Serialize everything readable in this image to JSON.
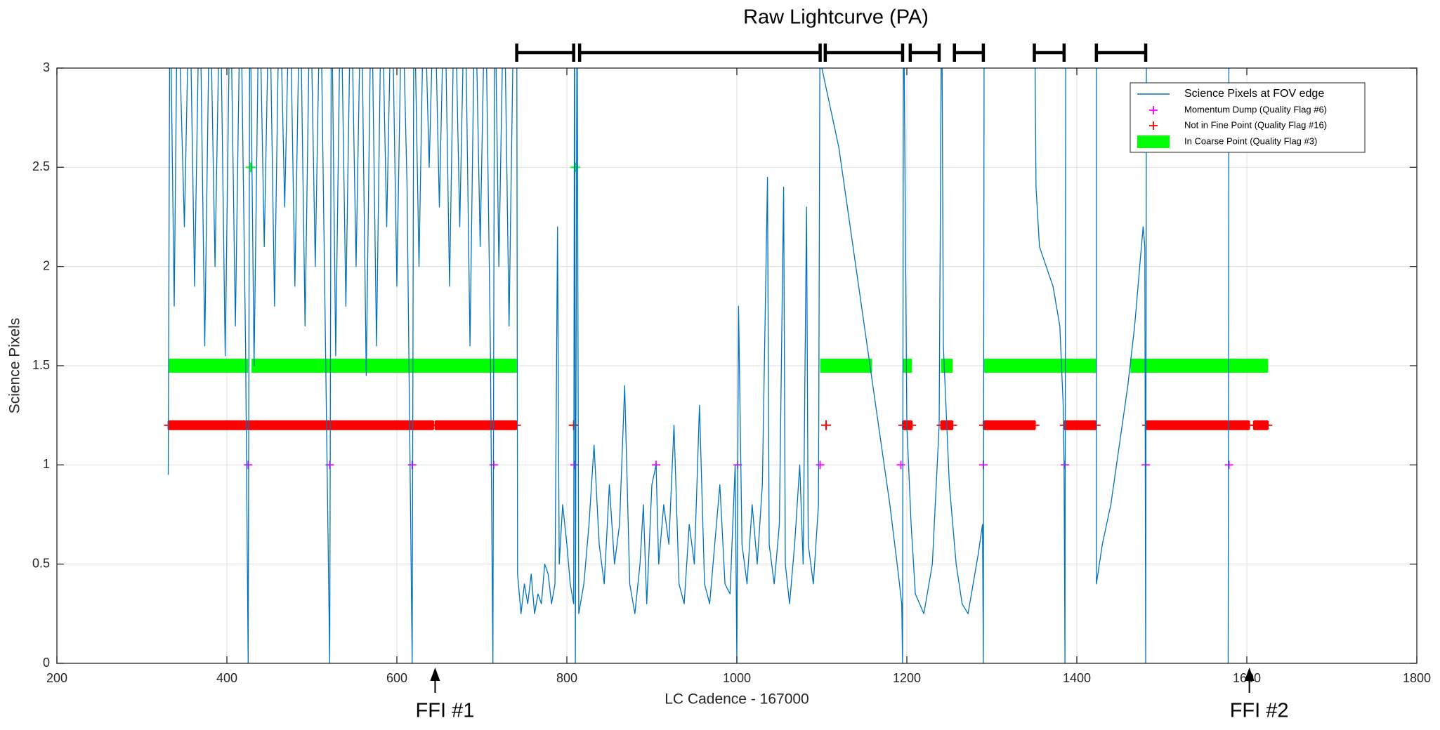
{
  "chart_data": {
    "type": "line",
    "title": "Raw Lightcurve (PA)",
    "x_label": "LC Cadence - 167000",
    "y_label": "Science Pixels",
    "xlim": [
      200,
      1800
    ],
    "xticks": [
      200,
      400,
      600,
      800,
      1000,
      1200,
      1400,
      1600,
      1800
    ],
    "ylim": [
      0,
      3
    ],
    "yticks": [
      0,
      0.5,
      1,
      1.5,
      2,
      2.5,
      3
    ],
    "grid": true,
    "legend": "northeast",
    "series": [
      {
        "name": "Science Pixels at FOV edge",
        "color": "#0072bd",
        "kind": "line",
        "x": [
          331,
          333,
          338,
          342,
          350,
          356,
          362,
          368,
          374,
          380,
          386,
          392,
          398,
          404,
          410,
          416,
          422,
          425,
          427,
          432,
          438,
          444,
          450,
          456,
          462,
          468,
          474,
          480,
          486,
          492,
          498,
          504,
          510,
          516,
          521,
          523,
          528,
          534,
          540,
          546,
          552,
          558,
          564,
          570,
          576,
          582,
          588,
          594,
          600,
          606,
          612,
          618,
          620,
          626,
          632,
          638,
          644,
          650,
          656,
          662,
          668,
          674,
          680,
          686,
          692,
          698,
          704,
          710,
          713,
          715,
          720,
          726,
          732,
          738,
          741,
          742,
          746,
          750,
          754,
          758,
          762,
          766,
          770,
          774,
          778,
          782,
          786,
          789,
          791,
          795,
          800,
          804,
          808,
          809,
          810,
          812,
          814,
          820,
          826,
          832,
          838,
          844,
          850,
          856,
          862,
          868,
          874,
          880,
          886,
          890,
          894,
          900,
          905,
          908,
          914,
          920,
          926,
          932,
          938,
          944,
          950,
          956,
          962,
          968,
          974,
          980,
          986,
          992,
          998,
          1000,
          1002,
          1006,
          1012,
          1018,
          1024,
          1030,
          1036,
          1038,
          1044,
          1050,
          1055,
          1057,
          1062,
          1068,
          1074,
          1078,
          1082,
          1084,
          1090,
          1096,
          1098,
          1100,
          1110,
          1120,
          1130,
          1140,
          1150,
          1160,
          1170,
          1180,
          1190,
          1194,
          1195,
          1196,
          1200,
          1205,
          1210,
          1220,
          1230,
          1238,
          1241,
          1243,
          1250,
          1258,
          1265,
          1272,
          1278,
          1284,
          1289,
          1290,
          1291,
          1320,
          1350,
          1352,
          1356,
          1364,
          1372,
          1380,
          1384,
          1385,
          1386,
          1387,
          1405,
          1423,
          1423,
          1430,
          1440,
          1450,
          1460,
          1468,
          1474,
          1478,
          1480,
          1481,
          1482,
          1530,
          1578,
          1579
        ],
        "y": [
          0.95,
          3.5,
          1.8,
          3.5,
          2.2,
          3.5,
          1.9,
          3.5,
          1.6,
          3.5,
          2.0,
          3.5,
          1.55,
          3.5,
          1.7,
          3.5,
          1.6,
          0,
          3.5,
          1.5,
          3.5,
          2.1,
          3.5,
          1.8,
          3.5,
          2.3,
          3.5,
          1.9,
          3.5,
          1.7,
          3.5,
          2.0,
          3.5,
          1.6,
          0,
          3.5,
          1.55,
          3.5,
          1.8,
          3.5,
          2.0,
          3.5,
          1.45,
          3.5,
          1.6,
          3.5,
          2.2,
          3.5,
          1.9,
          3.5,
          2.4,
          0,
          3.5,
          2.0,
          3.5,
          2.5,
          3.5,
          2.3,
          3.5,
          1.9,
          3.5,
          2.2,
          3.5,
          1.6,
          3.5,
          2.1,
          3.5,
          1.6,
          0,
          3.5,
          2.0,
          3.5,
          1.7,
          3.5,
          3.5,
          0.45,
          0.25,
          0.4,
          0.3,
          0.45,
          0.25,
          0.35,
          0.3,
          0.5,
          0.45,
          0.3,
          0.4,
          2.2,
          0.5,
          0.8,
          0.6,
          0.4,
          0.3,
          3.5,
          0,
          3.5,
          0.25,
          0.4,
          0.7,
          1.1,
          0.6,
          0.4,
          0.9,
          0.5,
          0.7,
          1.4,
          0.4,
          0.25,
          0.5,
          0.8,
          0.3,
          0.9,
          1.0,
          0.5,
          0.8,
          0.6,
          1.2,
          0.4,
          0.3,
          0.7,
          0.5,
          1.3,
          0.4,
          0.3,
          0.6,
          0.9,
          0.4,
          0.35,
          1.0,
          0,
          1.8,
          0.6,
          0.4,
          0.8,
          0.5,
          0.9,
          2.45,
          0.6,
          0.4,
          0.7,
          2.4,
          0.5,
          0.3,
          0.6,
          1.0,
          0.5,
          2.3,
          0.6,
          0.4,
          0.8,
          3.5,
          3.0,
          2.8,
          2.6,
          2.3,
          2.0,
          1.7,
          1.4,
          1.1,
          0.8,
          0.45,
          0.3,
          0,
          3.5,
          1.2,
          0.7,
          0.35,
          0.25,
          0.5,
          1.2,
          3.5,
          1.6,
          0.9,
          0.5,
          0.3,
          0.25,
          0.4,
          0.55,
          0.7,
          0,
          3.5,
          null,
          3.5,
          2.4,
          2.1,
          2.0,
          1.9,
          1.7,
          1.3,
          1.0,
          0,
          3.5,
          null,
          3.5,
          0.4,
          0.6,
          0.8,
          1.1,
          1.4,
          1.7,
          2.0,
          2.2,
          2.1,
          0,
          3.5,
          null,
          0,
          3.5
        ]
      },
      {
        "name": "Momentum Dump (Quality Flag #6)",
        "color": "#ff00ff",
        "kind": "markers",
        "x": [
          425,
          521,
          618,
          714,
          809,
          905,
          1001,
          1098,
          1193,
          1290,
          1386,
          1481,
          1579
        ],
        "y": [
          1,
          1,
          1,
          1,
          1,
          1,
          1,
          1,
          1,
          1,
          1,
          1,
          1
        ]
      },
      {
        "name": "Not in Fine Point (Quality Flag #16)",
        "color": "#ff0000",
        "kind": "ranges",
        "y": 1.2,
        "ranges": [
          [
            331,
            643
          ],
          [
            645,
            741
          ],
          [
            808,
            808
          ],
          [
            1105,
            1105
          ],
          [
            1195,
            1206
          ],
          [
            1240,
            1254
          ],
          [
            1290,
            1351
          ],
          [
            1385,
            1423
          ],
          [
            1482,
            1603
          ],
          [
            1608,
            1625
          ]
        ]
      },
      {
        "name": "In Coarse Point (Quality Flag #3)",
        "color": "#00ff00",
        "kind": "ranges",
        "y": 1.5,
        "ranges": [
          [
            331,
            425
          ],
          [
            429,
            741
          ],
          [
            1098,
            1159
          ],
          [
            1195,
            1206
          ],
          [
            1240,
            1254
          ],
          [
            1290,
            1423
          ],
          [
            1463,
            1625
          ]
        ],
        "marker_x": [
          428,
          810
        ],
        "marker_y": [
          2.5,
          2.5
        ]
      }
    ],
    "top_brackets": [
      [
        741,
        808
      ],
      [
        815,
        1098
      ],
      [
        1104,
        1195
      ],
      [
        1204,
        1238
      ],
      [
        1256,
        1290
      ],
      [
        1350,
        1385
      ],
      [
        1423,
        1481
      ]
    ],
    "annotations": [
      {
        "text": "FFI #1",
        "x": 645
      },
      {
        "text": "FFI #2",
        "x": 1603
      }
    ]
  }
}
